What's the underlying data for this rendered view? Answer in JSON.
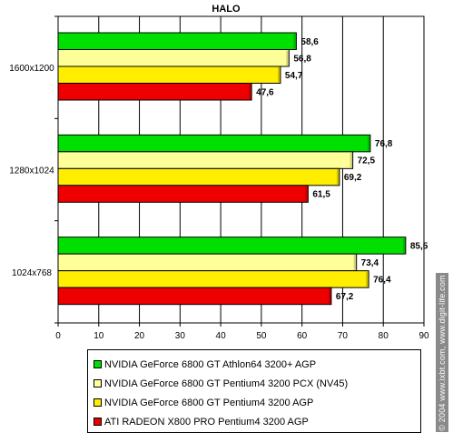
{
  "chart_data": {
    "type": "bar",
    "orientation": "horizontal",
    "title": "HALO",
    "categories": [
      "1600x1200",
      "1280x1024",
      "1024x768"
    ],
    "series": [
      {
        "name": "NVIDIA GeForce 6800 GT Athlon64 3200+ AGP",
        "color": "#00e000",
        "values": [
          58.6,
          76.8,
          85.5
        ],
        "labels": [
          "58,6",
          "76,8",
          "85,5"
        ]
      },
      {
        "name": "NVIDIA GeForce 6800 GT Pentium4 3200 PCX (NV45)",
        "color": "#ffff99",
        "values": [
          56.8,
          72.5,
          73.4
        ],
        "labels": [
          "56,8",
          "72,5",
          "73,4"
        ]
      },
      {
        "name": "NVIDIA GeForce 6800 GT Pentium4 3200 AGP",
        "color": "#ffee00",
        "values": [
          54.7,
          69.2,
          76.4
        ],
        "labels": [
          "54,7",
          "69,2",
          "76,4"
        ]
      },
      {
        "name": "ATI RADEON X800 PRO Pentium4 3200 AGP",
        "color": "#ee0000",
        "values": [
          47.6,
          61.5,
          67.2
        ],
        "labels": [
          "47,6",
          "61,5",
          "67,2"
        ]
      }
    ],
    "xlim": [
      0,
      90
    ],
    "xticks": [
      0,
      10,
      20,
      30,
      40,
      50,
      60,
      70,
      80,
      90
    ],
    "grid": true,
    "legend_position": "bottom"
  },
  "watermark": "© 2004 www.ixbt.com, www.digit-life.com"
}
